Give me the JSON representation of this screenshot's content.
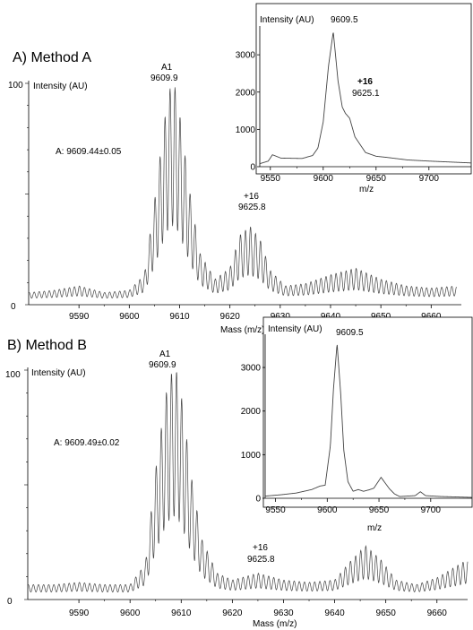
{
  "panels": [
    {
      "label": "A) Method A",
      "main_y_label": "Intensity (AU)",
      "summary": "A:  9609.44±0.05",
      "peak1_name": "A1",
      "peak1_mass": "9609.9",
      "peak2_name": "+16",
      "peak2_mass": "9625.8",
      "inset_y_label": "Intensity (AU)",
      "inset_peak_mass": "9609.5",
      "inset_peak2_name": "+16",
      "inset_peak2_mass": "9625.1",
      "inset_xlabel": "m/z"
    },
    {
      "label": "B) Method B",
      "main_y_label": "Intensity (AU)",
      "summary": "A:  9609.49±0.02",
      "peak1_name": "A1",
      "peak1_mass": "9609.9",
      "peak2_name": "+16",
      "peak2_mass": "9625.8",
      "inset_y_label": "Intensity (AU)",
      "inset_peak_mass": "9609.5",
      "inset_xlabel": "m/z"
    }
  ],
  "chart_data": [
    {
      "type": "line",
      "panel": "A) Method A",
      "xlabel": "Mass (m/z)",
      "ylabel": "Intensity (AU)",
      "xlim": [
        9580,
        9666
      ],
      "ylim": [
        0,
        100
      ],
      "x_ticks": [
        9590,
        9600,
        9610,
        9620,
        9630,
        9640,
        9650,
        9660
      ],
      "y_ticks": [
        0,
        100
      ],
      "x": [
        9580,
        9585,
        9590,
        9595,
        9600,
        9603,
        9605,
        9607,
        9608,
        9609,
        9610,
        9612,
        9614,
        9617,
        9620,
        9622,
        9624,
        9626,
        9628,
        9631,
        9635,
        9640,
        9645,
        9650,
        9655,
        9660,
        9665
      ],
      "y": [
        4,
        5,
        7,
        4,
        5,
        12,
        45,
        82,
        96,
        98,
        85,
        50,
        22,
        10,
        15,
        30,
        34,
        28,
        14,
        7,
        8,
        12,
        15,
        10,
        7,
        6,
        7
      ]
    },
    {
      "type": "line",
      "panel": "A) Method A inset",
      "xlabel": "m/z",
      "ylabel": "Intensity (AU)",
      "xlim": [
        9540,
        9740
      ],
      "ylim": [
        0,
        3700
      ],
      "x_ticks": [
        9550,
        9600,
        9650,
        9700
      ],
      "y_ticks": [
        0,
        1000,
        2000,
        3000
      ],
      "x": [
        9540,
        9548,
        9552,
        9560,
        9580,
        9590,
        9595,
        9600,
        9605,
        9609.5,
        9614,
        9618,
        9621,
        9625,
        9630,
        9640,
        9650,
        9660,
        9680,
        9700,
        9740
      ],
      "y": [
        80,
        150,
        320,
        230,
        220,
        300,
        500,
        1200,
        2700,
        3620,
        2300,
        1600,
        1430,
        1300,
        800,
        380,
        280,
        250,
        180,
        150,
        100
      ]
    },
    {
      "type": "line",
      "panel": "B) Method B",
      "xlabel": "Mass (m/z)",
      "ylabel": "Intensity (AU)",
      "xlim": [
        9580,
        9666
      ],
      "ylim": [
        0,
        100
      ],
      "x_ticks": [
        9590,
        9600,
        9610,
        9620,
        9630,
        9640,
        9650,
        9660
      ],
      "y_ticks": [
        0,
        100
      ],
      "x": [
        9580,
        9585,
        9590,
        9595,
        9600,
        9603,
        9605,
        9607,
        9608,
        9609,
        9610,
        9612,
        9614,
        9617,
        9620,
        9625,
        9630,
        9635,
        9640,
        9643,
        9646,
        9649,
        9652,
        9656,
        9660,
        9666
      ],
      "y": [
        5,
        5,
        6,
        5,
        5,
        14,
        55,
        88,
        97,
        99,
        88,
        52,
        25,
        10,
        7,
        10,
        7,
        6,
        7,
        15,
        22,
        16,
        7,
        5,
        8,
        16
      ]
    },
    {
      "type": "line",
      "panel": "B) Method B inset",
      "xlabel": "m/z",
      "ylabel": "Intensity (AU)",
      "xlim": [
        9540,
        9740
      ],
      "ylim": [
        0,
        3700
      ],
      "x_ticks": [
        9550,
        9600,
        9650,
        9700
      ],
      "y_ticks": [
        0,
        1000,
        2000,
        3000
      ],
      "x": [
        9540,
        9555,
        9570,
        9585,
        9593,
        9598,
        9603,
        9606,
        9609.5,
        9613,
        9616,
        9620,
        9625,
        9630,
        9635,
        9640,
        9645,
        9652,
        9660,
        9665,
        9670,
        9685,
        9690,
        9695,
        9710,
        9740
      ],
      "y": [
        50,
        80,
        120,
        200,
        280,
        300,
        1200,
        2500,
        3550,
        2400,
        1100,
        380,
        160,
        200,
        160,
        190,
        230,
        480,
        220,
        100,
        40,
        60,
        150,
        60,
        40,
        20
      ]
    }
  ]
}
